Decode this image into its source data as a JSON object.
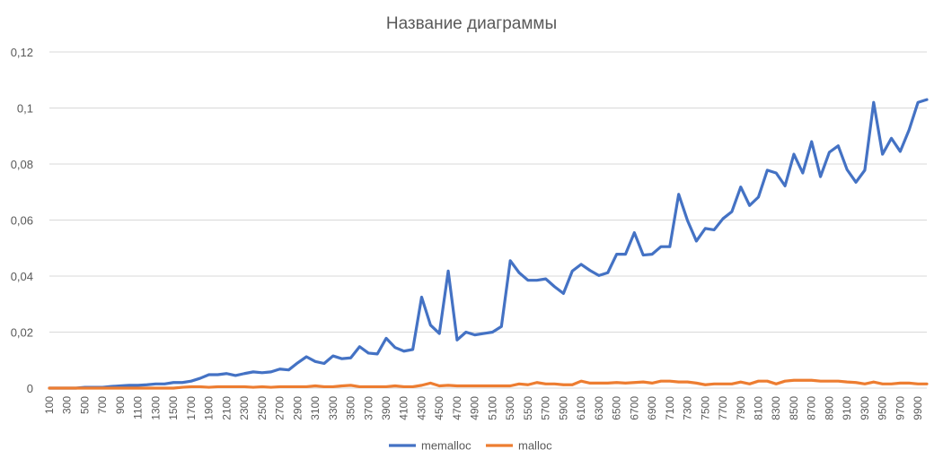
{
  "chart_data": {
    "type": "line",
    "title": "Название диаграммы",
    "xlabel": "",
    "ylabel": "",
    "ylim": [
      0,
      0.12
    ],
    "y_ticks": [
      "0",
      "0,02",
      "0,04",
      "0,06",
      "0,08",
      "0,1",
      "0,12"
    ],
    "x_tick_labels": [
      "100",
      "300",
      "500",
      "700",
      "900",
      "1100",
      "1300",
      "1500",
      "1700",
      "1900",
      "2100",
      "2300",
      "2500",
      "2700",
      "2900",
      "3100",
      "3300",
      "3500",
      "3700",
      "3900",
      "4100",
      "4300",
      "4500",
      "4700",
      "4900",
      "5100",
      "5300",
      "5500",
      "5700",
      "5900",
      "6100",
      "6300",
      "6500",
      "6700",
      "6900",
      "7100",
      "7300",
      "7500",
      "7700",
      "7900",
      "8100",
      "8300",
      "8500",
      "8700",
      "8900",
      "9100",
      "9300",
      "9500",
      "9700",
      "9900"
    ],
    "x": [
      100,
      200,
      300,
      400,
      500,
      600,
      700,
      800,
      900,
      1000,
      1100,
      1200,
      1300,
      1400,
      1500,
      1600,
      1700,
      1800,
      1900,
      2000,
      2100,
      2200,
      2300,
      2400,
      2500,
      2600,
      2700,
      2800,
      2900,
      3000,
      3100,
      3200,
      3300,
      3400,
      3500,
      3600,
      3700,
      3800,
      3900,
      4000,
      4100,
      4200,
      4300,
      4400,
      4500,
      4600,
      4700,
      4800,
      4900,
      5000,
      5100,
      5200,
      5300,
      5400,
      5500,
      5600,
      5700,
      5800,
      5900,
      6000,
      6100,
      6200,
      6300,
      6400,
      6500,
      6600,
      6700,
      6800,
      6900,
      7000,
      7100,
      7200,
      7300,
      7400,
      7500,
      7600,
      7700,
      7800,
      7900,
      8000,
      8100,
      8200,
      8300,
      8400,
      8500,
      8600,
      8700,
      8800,
      8900,
      9000,
      9100,
      9200,
      9300,
      9400,
      9500,
      9600,
      9700,
      9800,
      9900,
      10000
    ],
    "series": [
      {
        "name": "memalloc",
        "color": "#4472c4",
        "values": [
          0,
          0,
          0,
          0,
          0.0003,
          0.0003,
          0.0003,
          0.0006,
          0.0008,
          0.001,
          0.001,
          0.0012,
          0.0015,
          0.0015,
          0.002,
          0.002,
          0.0025,
          0.0035,
          0.0048,
          0.0048,
          0.0052,
          0.0045,
          0.0052,
          0.0058,
          0.0055,
          0.0058,
          0.0068,
          0.0065,
          0.009,
          0.0112,
          0.0095,
          0.0088,
          0.0115,
          0.0105,
          0.0108,
          0.0148,
          0.0125,
          0.0122,
          0.0178,
          0.0145,
          0.0132,
          0.0138,
          0.0325,
          0.0225,
          0.0195,
          0.0418,
          0.0172,
          0.02,
          0.019,
          0.0195,
          0.02,
          0.022,
          0.0455,
          0.0412,
          0.0385,
          0.0385,
          0.039,
          0.0362,
          0.0338,
          0.0418,
          0.0442,
          0.042,
          0.0402,
          0.0412,
          0.0478,
          0.0478,
          0.0555,
          0.0475,
          0.0478,
          0.0505,
          0.0505,
          0.0692,
          0.0598,
          0.0525,
          0.057,
          0.0565,
          0.0605,
          0.063,
          0.0718,
          0.0652,
          0.0682,
          0.0778,
          0.0768,
          0.0722,
          0.0835,
          0.0768,
          0.088,
          0.0755,
          0.0842,
          0.0865,
          0.078,
          0.0735,
          0.0778,
          0.102,
          0.0835,
          0.0892,
          0.0845,
          0.0922,
          0.102,
          0.103
        ]
      },
      {
        "name": "malloc",
        "color": "#ed7d31",
        "values": [
          0,
          0,
          0,
          0,
          0,
          0,
          0,
          0,
          0,
          0,
          0,
          0,
          0,
          0,
          0,
          0.0003,
          0.0005,
          0.0005,
          0.0003,
          0.0005,
          0.0005,
          0.0005,
          0.0005,
          0.0003,
          0.0005,
          0.0003,
          0.0005,
          0.0005,
          0.0005,
          0.0005,
          0.0008,
          0.0005,
          0.0005,
          0.0008,
          0.001,
          0.0005,
          0.0005,
          0.0005,
          0.0005,
          0.0008,
          0.0005,
          0.0005,
          0.001,
          0.0018,
          0.0008,
          0.001,
          0.0008,
          0.0008,
          0.0008,
          0.0008,
          0.0008,
          0.0008,
          0.0008,
          0.0015,
          0.0012,
          0.002,
          0.0015,
          0.0015,
          0.0012,
          0.0012,
          0.0025,
          0.0018,
          0.0018,
          0.0018,
          0.002,
          0.0018,
          0.002,
          0.0022,
          0.0018,
          0.0025,
          0.0025,
          0.0022,
          0.0022,
          0.0018,
          0.0012,
          0.0015,
          0.0015,
          0.0015,
          0.0022,
          0.0015,
          0.0025,
          0.0025,
          0.0015,
          0.0025,
          0.0028,
          0.0028,
          0.0028,
          0.0025,
          0.0025,
          0.0025,
          0.0022,
          0.002,
          0.0015,
          0.0022,
          0.0015,
          0.0015,
          0.0018,
          0.0018,
          0.0015,
          0.0015
        ]
      }
    ],
    "grid": true,
    "legend_position": "bottom"
  }
}
